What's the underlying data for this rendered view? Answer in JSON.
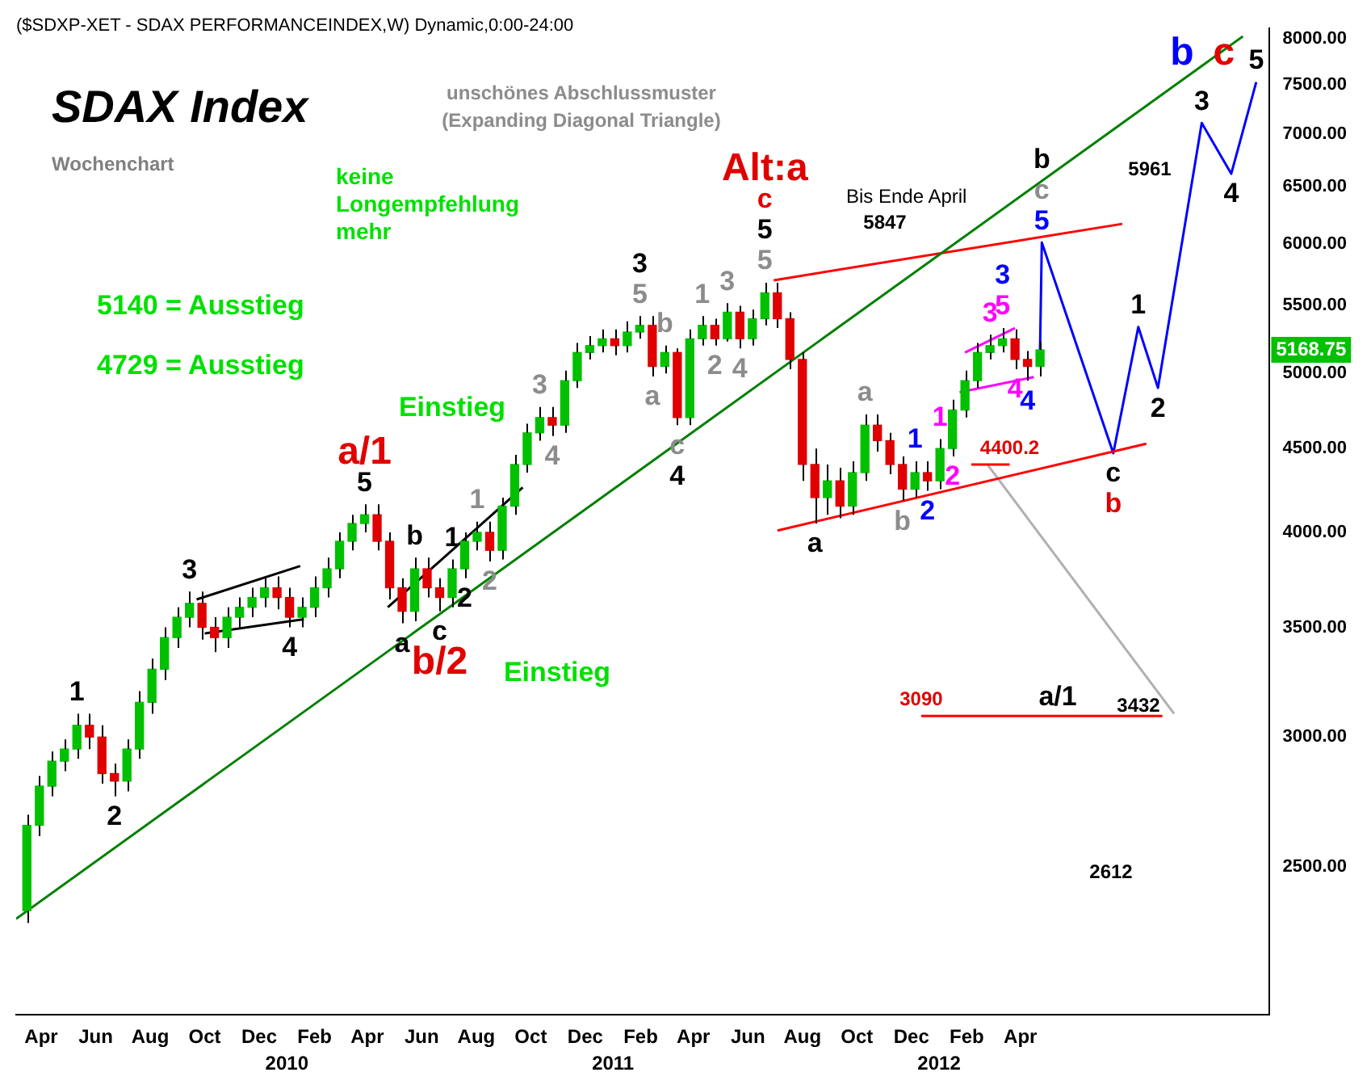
{
  "chart_data": {
    "type": "candlestick",
    "title": "SDAX Index",
    "subtitle": "Wochenchart",
    "log": true,
    "xlim": [
      "2009-03-04",
      "2013-01-05"
    ],
    "ylim": [
      2030,
      8120
    ],
    "xticks": [
      {
        "value": "2009-04-01",
        "label": "Apr"
      },
      {
        "value": "2009-06-01",
        "label": "Jun"
      },
      {
        "value": "2009-08-01",
        "label": "Aug"
      },
      {
        "value": "2009-10-01",
        "label": "Oct"
      },
      {
        "value": "2009-12-01",
        "label": "Dec"
      },
      {
        "value": "2010-02-01",
        "label": "Feb"
      },
      {
        "value": "2010-04-01",
        "label": "Apr"
      },
      {
        "value": "2010-06-01",
        "label": "Jun"
      },
      {
        "value": "2010-08-01",
        "label": "Aug"
      },
      {
        "value": "2010-10-01",
        "label": "Oct"
      },
      {
        "value": "2010-12-01",
        "label": "Dec"
      },
      {
        "value": "2011-02-01",
        "label": "Feb"
      },
      {
        "value": "2011-04-01",
        "label": "Apr"
      },
      {
        "value": "2011-06-01",
        "label": "Jun"
      },
      {
        "value": "2011-08-01",
        "label": "Aug"
      },
      {
        "value": "2011-10-01",
        "label": "Oct"
      },
      {
        "value": "2011-12-01",
        "label": "Dec"
      },
      {
        "value": "2012-02-01",
        "label": "Feb"
      },
      {
        "value": "2012-04-01",
        "label": "Apr"
      }
    ],
    "x2lim": [
      "2009-03-04",
      "2013-01-05"
    ],
    "x2ticks": [
      {
        "value": "2010-01-01",
        "label": "2010"
      },
      {
        "value": "2011-01-01",
        "label": "2011"
      },
      {
        "value": "2012-01-01",
        "label": "2012"
      }
    ],
    "yticks": [
      {
        "value": 2500,
        "label": "2500.00"
      },
      {
        "value": 3000,
        "label": "3000.00"
      },
      {
        "value": 3500,
        "label": "3500.00"
      },
      {
        "value": 4000,
        "label": "4000.00"
      },
      {
        "value": 4500,
        "label": "4500.00"
      },
      {
        "value": 5000,
        "label": "5000.00"
      },
      {
        "value": 5500,
        "label": "5500.00"
      },
      {
        "value": 6000,
        "label": "6000.00"
      },
      {
        "value": 6500,
        "label": "6500.00"
      },
      {
        "value": 7000,
        "label": "7000.00"
      },
      {
        "value": 7500,
        "label": "7500.00"
      },
      {
        "value": 8000,
        "label": "8000.00"
      }
    ],
    "series": [
      {
        "x": [
          "2009-03-16",
          "2009-03-30",
          "2009-04-13",
          "2009-04-27",
          "2009-05-11",
          "2009-05-25",
          "2009-06-08",
          "2009-06-22",
          "2009-07-06",
          "2009-07-20",
          "2009-08-03",
          "2009-08-17",
          "2009-08-31",
          "2009-09-14",
          "2009-09-28",
          "2009-10-12",
          "2009-10-26",
          "2009-11-09",
          "2009-11-23",
          "2009-12-07",
          "2009-12-21",
          "2010-01-04",
          "2010-01-18",
          "2010-02-01",
          "2010-02-15",
          "2010-03-01",
          "2010-03-15",
          "2010-03-29",
          "2010-04-12",
          "2010-04-26",
          "2010-05-10",
          "2010-05-24",
          "2010-06-07",
          "2010-06-21",
          "2010-07-05",
          "2010-07-19",
          "2010-08-02",
          "2010-08-16",
          "2010-08-30",
          "2010-09-13",
          "2010-09-27",
          "2010-10-11",
          "2010-10-25",
          "2010-11-08",
          "2010-11-22",
          "2010-12-06",
          "2010-12-20",
          "2011-01-03",
          "2011-01-17",
          "2011-01-31",
          "2011-02-14",
          "2011-02-28",
          "2011-03-14",
          "2011-03-28",
          "2011-04-11",
          "2011-04-25",
          "2011-05-09",
          "2011-05-23",
          "2011-06-06",
          "2011-06-20",
          "2011-07-04",
          "2011-07-18",
          "2011-08-01",
          "2011-08-15",
          "2011-08-29",
          "2011-09-12",
          "2011-09-26",
          "2011-10-10",
          "2011-10-24",
          "2011-11-07",
          "2011-11-21",
          "2011-12-05",
          "2011-12-19",
          "2012-01-02",
          "2012-01-16",
          "2012-01-30",
          "2012-02-13",
          "2012-02-27",
          "2012-03-12",
          "2012-03-26",
          "2012-04-09",
          "2012-04-23"
        ],
        "ohlc": [
          [
            2350,
            2690,
            2310,
            2650
          ],
          [
            2650,
            2840,
            2610,
            2800
          ],
          [
            2800,
            2940,
            2760,
            2900
          ],
          [
            2900,
            2990,
            2860,
            2950
          ],
          [
            2950,
            3100,
            2910,
            3050
          ],
          [
            3050,
            3100,
            2950,
            3000
          ],
          [
            3000,
            3050,
            2810,
            2850
          ],
          [
            2850,
            2890,
            2760,
            2820
          ],
          [
            2820,
            2990,
            2780,
            2950
          ],
          [
            2950,
            3200,
            2910,
            3150
          ],
          [
            3150,
            3350,
            3100,
            3300
          ],
          [
            3300,
            3500,
            3250,
            3450
          ],
          [
            3450,
            3600,
            3400,
            3550
          ],
          [
            3550,
            3680,
            3500,
            3620
          ],
          [
            3620,
            3680,
            3440,
            3500
          ],
          [
            3500,
            3550,
            3380,
            3450
          ],
          [
            3450,
            3600,
            3400,
            3550
          ],
          [
            3550,
            3650,
            3500,
            3600
          ],
          [
            3600,
            3700,
            3550,
            3650
          ],
          [
            3650,
            3760,
            3600,
            3700
          ],
          [
            3700,
            3760,
            3590,
            3650
          ],
          [
            3650,
            3700,
            3500,
            3550
          ],
          [
            3550,
            3650,
            3500,
            3600
          ],
          [
            3600,
            3760,
            3550,
            3700
          ],
          [
            3700,
            3860,
            3650,
            3800
          ],
          [
            3800,
            4000,
            3750,
            3950
          ],
          [
            3950,
            4100,
            3900,
            4050
          ],
          [
            4050,
            4160,
            4000,
            4100
          ],
          [
            4100,
            4160,
            3900,
            3950
          ],
          [
            3950,
            4000,
            3640,
            3700
          ],
          [
            3700,
            3750,
            3520,
            3580
          ],
          [
            3580,
            3860,
            3530,
            3800
          ],
          [
            3800,
            3860,
            3650,
            3700
          ],
          [
            3700,
            3750,
            3580,
            3650
          ],
          [
            3650,
            3850,
            3600,
            3800
          ],
          [
            3800,
            4000,
            3750,
            3950
          ],
          [
            3950,
            4060,
            3900,
            4000
          ],
          [
            4000,
            4060,
            3840,
            3900
          ],
          [
            3900,
            4200,
            3850,
            4150
          ],
          [
            4150,
            4460,
            4100,
            4400
          ],
          [
            4400,
            4660,
            4350,
            4600
          ],
          [
            4600,
            4770,
            4550,
            4700
          ],
          [
            4700,
            4770,
            4580,
            4650
          ],
          [
            4650,
            5020,
            4600,
            4950
          ],
          [
            4950,
            5220,
            4900,
            5150
          ],
          [
            5150,
            5270,
            5100,
            5200
          ],
          [
            5200,
            5320,
            5150,
            5250
          ],
          [
            5250,
            5320,
            5130,
            5200
          ],
          [
            5200,
            5380,
            5150,
            5300
          ],
          [
            5300,
            5420,
            5250,
            5350
          ],
          [
            5350,
            5420,
            4980,
            5050
          ],
          [
            5050,
            5200,
            5000,
            5150
          ],
          [
            5150,
            5180,
            4650,
            4700
          ],
          [
            4700,
            5320,
            4650,
            5250
          ],
          [
            5250,
            5420,
            5200,
            5350
          ],
          [
            5350,
            5400,
            5200,
            5250
          ],
          [
            5250,
            5520,
            5230,
            5450
          ],
          [
            5450,
            5500,
            5180,
            5250
          ],
          [
            5250,
            5470,
            5200,
            5400
          ],
          [
            5400,
            5680,
            5350,
            5600
          ],
          [
            5600,
            5680,
            5330,
            5400
          ],
          [
            5400,
            5450,
            5030,
            5100
          ],
          [
            5100,
            5150,
            4300,
            4400
          ],
          [
            4400,
            4500,
            4050,
            4200
          ],
          [
            4200,
            4400,
            4100,
            4300
          ],
          [
            4300,
            4380,
            4080,
            4150
          ],
          [
            4150,
            4420,
            4100,
            4350
          ],
          [
            4350,
            4720,
            4300,
            4650
          ],
          [
            4650,
            4720,
            4480,
            4550
          ],
          [
            4550,
            4600,
            4340,
            4400
          ],
          [
            4400,
            4450,
            4180,
            4250
          ],
          [
            4250,
            4420,
            4200,
            4350
          ],
          [
            4350,
            4420,
            4240,
            4300
          ],
          [
            4300,
            4560,
            4250,
            4500
          ],
          [
            4500,
            4820,
            4450,
            4750
          ],
          [
            4750,
            5020,
            4700,
            4950
          ],
          [
            4950,
            5220,
            4900,
            5150
          ],
          [
            5150,
            5280,
            5100,
            5200
          ],
          [
            5200,
            5330,
            5150,
            5250
          ],
          [
            5250,
            5320,
            5030,
            5100
          ],
          [
            5100,
            5160,
            4950,
            5050
          ],
          [
            5050,
            5230,
            4980,
            5168.75
          ]
        ],
        "colors": [
          "#00c000",
          "#00c000",
          "#00c000",
          "#00c000",
          "#00c000",
          "#e00000",
          "#e00000",
          "#e00000",
          "#00c000",
          "#00c000",
          "#00c000",
          "#00c000",
          "#00c000",
          "#00c000",
          "#e00000",
          "#e00000",
          "#00c000",
          "#00c000",
          "#00c000",
          "#00c000",
          "#e00000",
          "#e00000",
          "#00c000",
          "#00c000",
          "#00c000",
          "#00c000",
          "#00c000",
          "#00c000",
          "#e00000",
          "#e00000",
          "#e00000",
          "#00c000",
          "#e00000",
          "#e00000",
          "#00c000",
          "#00c000",
          "#00c000",
          "#e00000",
          "#00c000",
          "#00c000",
          "#00c000",
          "#00c000",
          "#e00000",
          "#00c000",
          "#00c000",
          "#00c000",
          "#00c000",
          "#e00000",
          "#00c000",
          "#00c000",
          "#e00000",
          "#00c000",
          "#e00000",
          "#00c000",
          "#00c000",
          "#e00000",
          "#00c000",
          "#e00000",
          "#00c000",
          "#00c000",
          "#e00000",
          "#e00000",
          "#e00000",
          "#e00000",
          "#00c000",
          "#e00000",
          "#00c000",
          "#00c000",
          "#e00000",
          "#e00000",
          "#e00000",
          "#00c000",
          "#e00000",
          "#00c000",
          "#00c000",
          "#00c000",
          "#00c000",
          "#00c000",
          "#00c000",
          "#e00000",
          "#e00000",
          "#00c000"
        ]
      },
      {
        "type": "line",
        "color": "#008000",
        "x": [
          "2009-03-04",
          "2012-12-06"
        ],
        "values": [
          2324,
          8030
        ]
      },
      {
        "type": "line",
        "color": "#ff0000",
        "x": [
          "2011-06-30",
          "2012-07-24"
        ],
        "values": [
          5700,
          6170
        ]
      },
      {
        "type": "line",
        "color": "#ff0000",
        "x": [
          "2011-07-04",
          "2012-08-20"
        ],
        "values": [
          4010,
          4530
        ]
      },
      {
        "type": "line",
        "color": "#ff0000",
        "x": [
          "2012-02-06",
          "2012-03-20"
        ],
        "values": [
          4400.2,
          4400.2
        ]
      },
      {
        "type": "line",
        "color": "#ff0000",
        "x": [
          "2011-12-12",
          "2012-09-07"
        ],
        "values": [
          3090,
          3090
        ]
      },
      {
        "type": "line",
        "color": "#b0b0b0",
        "x": [
          "2012-02-24",
          "2012-09-20"
        ],
        "values": [
          4400,
          3100
        ]
      },
      {
        "type": "line",
        "color": "#000000",
        "x": [
          "2009-09-22",
          "2010-01-16"
        ],
        "values": [
          3640,
          3815
        ]
      },
      {
        "type": "line",
        "color": "#000000",
        "x": [
          "2009-10-01",
          "2010-01-20"
        ],
        "values": [
          3470,
          3540
        ]
      },
      {
        "type": "line",
        "color": "#000000",
        "x": [
          "2010-04-24",
          "2010-09-22"
        ],
        "values": [
          3600,
          4260
        ]
      },
      {
        "type": "line",
        "color": "#ff00ff",
        "x": [
          "2012-01-30",
          "2012-03-26"
        ],
        "values": [
          5150,
          5330
        ]
      },
      {
        "type": "line",
        "color": "#ff00ff",
        "x": [
          "2012-01-24",
          "2012-04-16"
        ],
        "values": [
          4870,
          4975
        ]
      },
      {
        "type": "line",
        "color": "#0000ff",
        "x": [
          "2012-04-23",
          "2012-04-25",
          "2012-07-14",
          "2012-08-11",
          "2012-09-02",
          "2012-10-21",
          "2012-11-23",
          "2012-12-21"
        ],
        "values": [
          5168.75,
          6010,
          4470,
          5338,
          4900,
          7110,
          6620,
          7530
        ]
      }
    ],
    "annotations": [
      "($SDXP-XET - SDAX PERFORMANCEINDEX,W) Dynamic,0:00-24:00",
      "unschönes Abschlussmuster",
      "(Expanding Diagonal Triangle)",
      "keine Longempfehlung mehr",
      "5140 = Ausstieg",
      "4729 = Ausstieg",
      "Einstieg",
      "Einstieg",
      "Bis Ende April",
      "5847",
      "5961",
      "a/1",
      "3432",
      "2612",
      "5168.75",
      {
        "text": "1",
        "x": "2009-05-11",
        "y": 3100
      },
      {
        "text": "2",
        "x": "2009-06-22",
        "y": 2760
      },
      {
        "text": "3",
        "x": "2009-09-14",
        "y": 3680
      },
      {
        "text": "4",
        "x": "2010-01-04",
        "y": 3500
      },
      {
        "text": "5",
        "x": "2010-03-29",
        "y": 4160
      },
      {
        "text": "a/1",
        "x": "2010-03-29",
        "y": 4160
      },
      {
        "text": "a",
        "x": "2010-05-10",
        "y": 3520
      },
      {
        "text": "b",
        "x": "2010-05-24",
        "y": 3860
      },
      {
        "text": "c",
        "x": "2010-06-21",
        "y": 3580
      },
      {
        "text": "b/2",
        "x": "2010-06-21",
        "y": 3580
      },
      {
        "text": "1",
        "x": "2010-07-05",
        "y": 3850
      },
      {
        "text": "2",
        "x": "2010-07-19",
        "y": 3750
      },
      {
        "text": "1",
        "x": "2010-08-02",
        "y": 4060
      },
      {
        "text": "2",
        "x": "2010-08-16",
        "y": 3840
      },
      {
        "text": "3",
        "x": "2010-10-11",
        "y": 4770
      },
      {
        "text": "4",
        "x": "2010-10-25",
        "y": 4580
      },
      {
        "text": "5",
        "x": "2011-01-31",
        "y": 5420
      },
      {
        "text": "3",
        "x": "2011-01-31",
        "y": 5420
      },
      {
        "text": "a",
        "x": "2011-02-14",
        "y": 4980
      },
      {
        "text": "b",
        "x": "2011-02-28",
        "y": 5200
      },
      {
        "text": "c",
        "x": "2011-03-14",
        "y": 4650
      },
      {
        "text": "4",
        "x": "2011-03-14",
        "y": 4650
      },
      {
        "text": "1",
        "x": "2011-04-11",
        "y": 5420
      },
      {
        "text": "2",
        "x": "2011-04-25",
        "y": 5200
      },
      {
        "text": "3",
        "x": "2011-05-09",
        "y": 5520
      },
      {
        "text": "4",
        "x": "2011-05-23",
        "y": 5180
      },
      {
        "text": "5",
        "x": "2011-06-20",
        "y": 5680
      },
      {
        "text": "5",
        "x": "2011-06-20",
        "y": 5680
      },
      {
        "text": "c",
        "x": "2011-06-20",
        "y": 5680
      },
      {
        "text": "Alt:a",
        "x": "2011-06-20",
        "y": 5680
      },
      {
        "text": "a",
        "x": "2011-08-15",
        "y": 4050
      },
      {
        "text": "a",
        "x": "2011-10-10",
        "y": 4720
      },
      {
        "text": "b",
        "x": "2011-11-21",
        "y": 4180
      },
      {
        "text": "1",
        "x": "2011-12-05",
        "y": 4420
      },
      {
        "text": "2",
        "x": "2011-12-19",
        "y": 4240
      },
      {
        "text": "1",
        "x": "2012-01-02",
        "y": 4560
      },
      {
        "text": "2",
        "x": "2012-01-16",
        "y": 4450
      },
      {
        "text": "3",
        "x": "2012-02-27",
        "y": 5280
      },
      {
        "text": "5",
        "x": "2012-03-12",
        "y": 5330
      },
      {
        "text": "3",
        "x": "2012-03-12",
        "y": 5330
      },
      {
        "text": "4",
        "x": "2012-03-26",
        "y": 5030
      },
      {
        "text": "4",
        "x": "2012-04-09",
        "y": 4950
      },
      {
        "text": "5",
        "x": "2012-04-25",
        "y": 6010
      },
      {
        "text": "c",
        "x": "2012-04-25",
        "y": 6010
      },
      {
        "text": "b",
        "x": "2012-04-25",
        "y": 6010
      },
      {
        "text": "c",
        "x": "2012-07-14",
        "y": 4470
      },
      {
        "text": "b",
        "x": "2012-07-14",
        "y": 4470
      },
      {
        "text": "1",
        "x": "2012-08-11",
        "y": 5338
      },
      {
        "text": "2",
        "x": "2012-09-02",
        "y": 4900
      },
      {
        "text": "3",
        "x": "2012-10-21",
        "y": 7110
      },
      {
        "text": "4",
        "x": "2012-11-23",
        "y": 6620
      },
      {
        "text": "5",
        "x": "2012-12-21",
        "y": 7530
      },
      {
        "text": "c",
        "x": "2012-12-21",
        "y": 7530
      },
      {
        "text": "b",
        "x": "2012-12-21",
        "y": 7530
      },
      {
        "text": "4400.2",
        "x": "2012-03-20",
        "y": 4400.2
      },
      {
        "text": "3090",
        "x": "2011-12-12",
        "y": 3090
      }
    ]
  }
}
